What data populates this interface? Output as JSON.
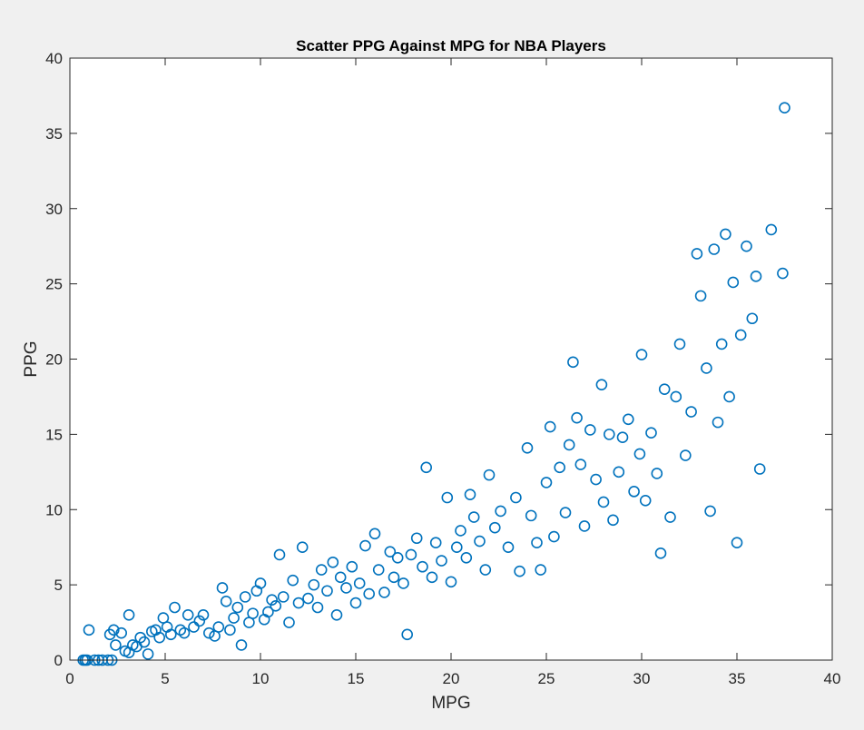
{
  "chart_data": {
    "type": "scatter",
    "title": "Scatter PPG Against MPG for NBA Players",
    "xlabel": "MPG",
    "ylabel": "PPG",
    "xlim": [
      0,
      40
    ],
    "ylim": [
      0,
      40
    ],
    "x_ticks": [
      "0",
      "5",
      "10",
      "15",
      "20",
      "25",
      "30",
      "35",
      "40"
    ],
    "y_ticks": [
      "0",
      "5",
      "10",
      "15",
      "20",
      "25",
      "30",
      "35",
      "40"
    ],
    "grid": false,
    "marker": "open-circle",
    "marker_color": "#0072bd",
    "points": [
      [
        0.7,
        0
      ],
      [
        0.8,
        0
      ],
      [
        0.9,
        0
      ],
      [
        1.0,
        2.0
      ],
      [
        1.3,
        0
      ],
      [
        1.5,
        0
      ],
      [
        1.7,
        0
      ],
      [
        2.0,
        0
      ],
      [
        2.1,
        1.7
      ],
      [
        2.3,
        2.0
      ],
      [
        2.2,
        0
      ],
      [
        2.4,
        1.0
      ],
      [
        2.7,
        1.8
      ],
      [
        2.9,
        0.6
      ],
      [
        3.1,
        0.5
      ],
      [
        3.3,
        1.0
      ],
      [
        3.1,
        3.0
      ],
      [
        3.5,
        0.9
      ],
      [
        3.7,
        1.5
      ],
      [
        3.9,
        1.2
      ],
      [
        4.1,
        0.4
      ],
      [
        4.3,
        1.9
      ],
      [
        4.5,
        2.0
      ],
      [
        4.7,
        1.5
      ],
      [
        4.9,
        2.8
      ],
      [
        5.1,
        2.2
      ],
      [
        5.3,
        1.7
      ],
      [
        5.5,
        3.5
      ],
      [
        5.8,
        2.0
      ],
      [
        6.0,
        1.8
      ],
      [
        6.2,
        3.0
      ],
      [
        6.5,
        2.2
      ],
      [
        6.8,
        2.6
      ],
      [
        7.0,
        3.0
      ],
      [
        7.3,
        1.8
      ],
      [
        7.6,
        1.6
      ],
      [
        7.8,
        2.2
      ],
      [
        8.0,
        4.8
      ],
      [
        8.2,
        3.9
      ],
      [
        8.4,
        2.0
      ],
      [
        8.6,
        2.8
      ],
      [
        8.8,
        3.5
      ],
      [
        9.0,
        1.0
      ],
      [
        9.2,
        4.2
      ],
      [
        9.4,
        2.5
      ],
      [
        9.6,
        3.1
      ],
      [
        9.8,
        4.6
      ],
      [
        10.0,
        5.1
      ],
      [
        10.2,
        2.7
      ],
      [
        10.4,
        3.2
      ],
      [
        10.6,
        4.0
      ],
      [
        10.8,
        3.6
      ],
      [
        11.0,
        7.0
      ],
      [
        11.2,
        4.2
      ],
      [
        11.5,
        2.5
      ],
      [
        11.7,
        5.3
      ],
      [
        12.0,
        3.8
      ],
      [
        12.2,
        7.5
      ],
      [
        12.5,
        4.1
      ],
      [
        12.8,
        5.0
      ],
      [
        13.0,
        3.5
      ],
      [
        13.2,
        6.0
      ],
      [
        13.5,
        4.6
      ],
      [
        13.8,
        6.5
      ],
      [
        14.0,
        3.0
      ],
      [
        14.2,
        5.5
      ],
      [
        14.5,
        4.8
      ],
      [
        14.8,
        6.2
      ],
      [
        15.0,
        3.8
      ],
      [
        15.2,
        5.1
      ],
      [
        15.5,
        7.6
      ],
      [
        15.7,
        4.4
      ],
      [
        16.0,
        8.4
      ],
      [
        16.2,
        6.0
      ],
      [
        16.5,
        4.5
      ],
      [
        16.8,
        7.2
      ],
      [
        17.0,
        5.5
      ],
      [
        17.2,
        6.8
      ],
      [
        17.5,
        5.1
      ],
      [
        17.7,
        1.7
      ],
      [
        17.9,
        7.0
      ],
      [
        18.2,
        8.1
      ],
      [
        18.5,
        6.2
      ],
      [
        18.7,
        12.8
      ],
      [
        19.0,
        5.5
      ],
      [
        19.2,
        7.8
      ],
      [
        19.5,
        6.6
      ],
      [
        19.8,
        10.8
      ],
      [
        20.0,
        5.2
      ],
      [
        20.3,
        7.5
      ],
      [
        20.5,
        8.6
      ],
      [
        20.8,
        6.8
      ],
      [
        21.0,
        11.0
      ],
      [
        21.2,
        9.5
      ],
      [
        21.5,
        7.9
      ],
      [
        21.8,
        6.0
      ],
      [
        22.0,
        12.3
      ],
      [
        22.3,
        8.8
      ],
      [
        22.6,
        9.9
      ],
      [
        23.0,
        7.5
      ],
      [
        23.4,
        10.8
      ],
      [
        23.6,
        5.9
      ],
      [
        24.0,
        14.1
      ],
      [
        24.2,
        9.6
      ],
      [
        24.5,
        7.8
      ],
      [
        24.7,
        6.0
      ],
      [
        25.0,
        11.8
      ],
      [
        25.2,
        15.5
      ],
      [
        25.4,
        8.2
      ],
      [
        25.7,
        12.8
      ],
      [
        26.0,
        9.8
      ],
      [
        26.2,
        14.3
      ],
      [
        26.4,
        19.8
      ],
      [
        26.6,
        16.1
      ],
      [
        26.8,
        13.0
      ],
      [
        27.0,
        8.9
      ],
      [
        27.3,
        15.3
      ],
      [
        27.6,
        12.0
      ],
      [
        27.9,
        18.3
      ],
      [
        28.0,
        10.5
      ],
      [
        28.3,
        15.0
      ],
      [
        28.5,
        9.3
      ],
      [
        28.8,
        12.5
      ],
      [
        29.0,
        14.8
      ],
      [
        29.3,
        16.0
      ],
      [
        29.6,
        11.2
      ],
      [
        29.9,
        13.7
      ],
      [
        30.0,
        20.3
      ],
      [
        30.2,
        10.6
      ],
      [
        30.5,
        15.1
      ],
      [
        30.8,
        12.4
      ],
      [
        31.0,
        7.1
      ],
      [
        31.2,
        18.0
      ],
      [
        31.5,
        9.5
      ],
      [
        31.8,
        17.5
      ],
      [
        32.0,
        21.0
      ],
      [
        32.3,
        13.6
      ],
      [
        32.6,
        16.5
      ],
      [
        32.9,
        27.0
      ],
      [
        33.1,
        24.2
      ],
      [
        33.4,
        19.4
      ],
      [
        33.6,
        9.9
      ],
      [
        33.8,
        27.3
      ],
      [
        34.0,
        15.8
      ],
      [
        34.2,
        21.0
      ],
      [
        34.4,
        28.3
      ],
      [
        34.6,
        17.5
      ],
      [
        34.8,
        25.1
      ],
      [
        35.0,
        7.8
      ],
      [
        35.2,
        21.6
      ],
      [
        35.5,
        27.5
      ],
      [
        35.8,
        22.7
      ],
      [
        36.0,
        25.5
      ],
      [
        36.2,
        12.7
      ],
      [
        36.8,
        28.6
      ],
      [
        37.4,
        25.7
      ],
      [
        37.5,
        36.7
      ]
    ]
  }
}
